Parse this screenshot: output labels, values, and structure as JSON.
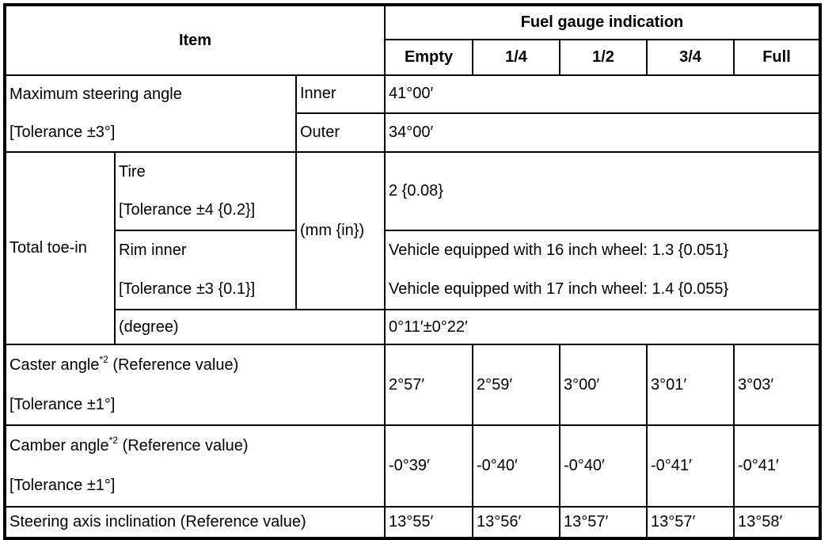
{
  "header": {
    "item": "Item",
    "fuel_gauge": "Fuel gauge indication",
    "levels": [
      "Empty",
      "1/4",
      "1/2",
      "3/4",
      "Full"
    ]
  },
  "max_steering": {
    "label": "Maximum steering angle",
    "tolerance": "[Tolerance ±3°]",
    "inner_label": "Inner",
    "inner_value": "41°00′",
    "outer_label": "Outer",
    "outer_value": "34°00′"
  },
  "toe_in": {
    "label": "Total toe-in",
    "unit": "(mm {in})",
    "tire_label": "Tire",
    "tire_tolerance": "[Tolerance ±4 {0.2}]",
    "tire_value": "2 {0.08}",
    "rim_label": "Rim inner",
    "rim_tolerance": "[Tolerance ±3 {0.1}]",
    "rim_value_16": "Vehicle equipped with 16 inch wheel: 1.3 {0.051}",
    "rim_value_17": "Vehicle equipped with 17 inch wheel: 1.4 {0.055}",
    "degree_label": "(degree)",
    "degree_value": "0°11′±0°22′"
  },
  "caster": {
    "label": "Caster angle",
    "note": "*2",
    "ref": "(Reference value)",
    "tolerance": "[Tolerance ±1°]",
    "values": [
      "2°57′",
      "2°59′",
      "3°00′",
      "3°01′",
      "3°03′"
    ]
  },
  "camber": {
    "label": "Camber angle",
    "note": "*2",
    "ref": "(Reference value)",
    "tolerance": "[Tolerance ±1°]",
    "values": [
      "-0°39′",
      "-0°40′",
      "-0°40′",
      "-0°41′",
      "-0°41′"
    ]
  },
  "sai": {
    "label": "Steering axis inclination (Reference value)",
    "values": [
      "13°55′",
      "13°56′",
      "13°57′",
      "13°57′",
      "13°58′"
    ]
  }
}
